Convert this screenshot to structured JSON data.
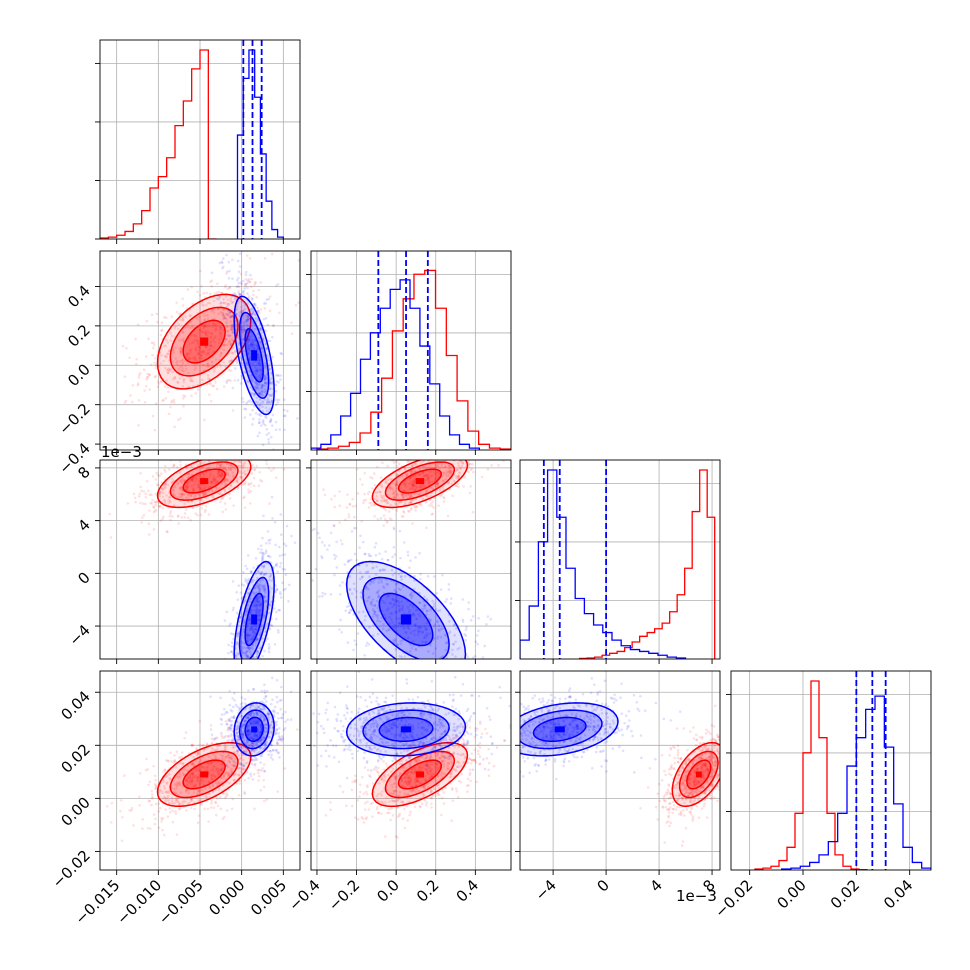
{
  "colors": {
    "red": "#ff0000",
    "blue": "#0000ff",
    "grid": "#b0b0b0",
    "frame": "#000000"
  },
  "chart_data": {
    "type": "corner",
    "grid": true,
    "parameters": [
      {
        "ticks": [
          -0.015,
          -0.01,
          -0.005,
          0.0,
          0.005
        ],
        "tick_labels": [
          "−0.015",
          "−0.010",
          "−0.005",
          "0.000",
          "0.005"
        ],
        "range": [
          -0.017,
          0.007
        ]
      },
      {
        "ticks": [
          -0.4,
          -0.2,
          0.0,
          0.2,
          0.4
        ],
        "tick_labels": [
          "−0.4",
          "−0.2",
          "0.0",
          "0.2",
          "0.4"
        ],
        "range": [
          -0.43,
          0.58
        ]
      },
      {
        "ticks": [
          -0.004,
          0.0,
          0.004,
          0.008
        ],
        "tick_labels": [
          "−4",
          "0",
          "4",
          "8"
        ],
        "offset_text": "1e−3",
        "range": [
          -0.0065,
          0.0086
        ]
      },
      {
        "ticks": [
          -0.02,
          0.0,
          0.02,
          0.04
        ],
        "tick_labels": [
          "−0.02",
          "0.00",
          "0.02",
          "0.04"
        ],
        "range": [
          -0.027,
          0.048
        ]
      }
    ],
    "series": [
      {
        "color": "#ff0000",
        "means": [
          -0.0045,
          0.12,
          0.007,
          0.009
        ],
        "sigmas": [
          0.0028,
          0.12,
          0.001,
          0.006
        ],
        "corr": [
          [
            0,
            1,
            0.45
          ],
          [
            0,
            2,
            0.55
          ],
          [
            0,
            3,
            0.55
          ],
          [
            1,
            2,
            0.6
          ],
          [
            1,
            3,
            0.6
          ],
          [
            2,
            3,
            0.5
          ]
        ],
        "hist": [
          {
            "edges_range": [
              -0.017,
              -0.003
            ],
            "counts": [
              0.5,
              1,
              2,
              4,
              8,
              15,
              27,
              33,
              43,
              60,
              73,
              90,
              100,
              0
            ]
          },
          {
            "edges_range": [
              -0.4,
              0.58
            ],
            "counts": [
              0.5,
              1,
              2,
              4,
              9,
              20,
              38,
              63,
              80,
              93,
              95,
              75,
              50,
              26,
              10,
              3,
              1,
              0.5
            ]
          },
          {
            "edges_range": [
              -0.002,
              0.0082
            ],
            "counts": [
              0.3,
              0.5,
              1,
              2,
              3,
              4,
              6,
              9,
              12,
              14,
              16,
              19,
              25,
              34,
              48,
              78,
              100,
              75
            ]
          },
          {
            "edges_range": [
              -0.018,
              0.024
            ],
            "counts": [
              0.5,
              1,
              2,
              5,
              12,
              30,
              62,
              100,
              70,
              30,
              8,
              2,
              0.5,
              0.2
            ]
          }
        ]
      },
      {
        "color": "#0000ff",
        "means": [
          0.0015,
          0.05,
          -0.0035,
          0.026
        ],
        "sigmas": [
          0.0012,
          0.15,
          0.0022,
          0.005
        ],
        "corr": [
          [
            0,
            1,
            -0.6
          ],
          [
            0,
            2,
            0.6
          ],
          [
            0,
            3,
            0.1
          ],
          [
            1,
            2,
            -0.6
          ],
          [
            1,
            3,
            0.1
          ],
          [
            2,
            3,
            0.3
          ]
        ],
        "hist": [
          {
            "edges_range": [
              -0.0005,
              0.005
            ],
            "counts": [
              55,
              85,
              100,
              75,
              45,
              20,
              5,
              1
            ]
          },
          {
            "edges_range": [
              -0.43,
              0.42
            ],
            "counts": [
              1,
              3,
              8,
              18,
              30,
              48,
              62,
              75,
              85,
              90,
              75,
              55,
              35,
              18,
              8,
              3,
              1
            ]
          },
          {
            "edges_range": [
              -0.0065,
              0.006
            ],
            "counts": [
              10,
              28,
              62,
              100,
              75,
              48,
              32,
              24,
              18,
              14,
              10,
              7,
              5,
              4,
              3,
              2,
              1,
              0.5
            ]
          },
          {
            "edges_range": [
              -0.008,
              0.048
            ],
            "counts": [
              0.5,
              1,
              2,
              4,
              8,
              15,
              30,
              55,
              70,
              85,
              92,
              65,
              35,
              12,
              4,
              1
            ]
          }
        ]
      }
    ],
    "quantile_lines": [
      [
        0.0002,
        0.0013,
        0.0024
      ],
      [
        -0.09,
        0.05,
        0.16
      ],
      [
        -0.0047,
        -0.0035,
        0.0
      ],
      [
        0.02,
        0.026,
        0.031
      ]
    ]
  }
}
